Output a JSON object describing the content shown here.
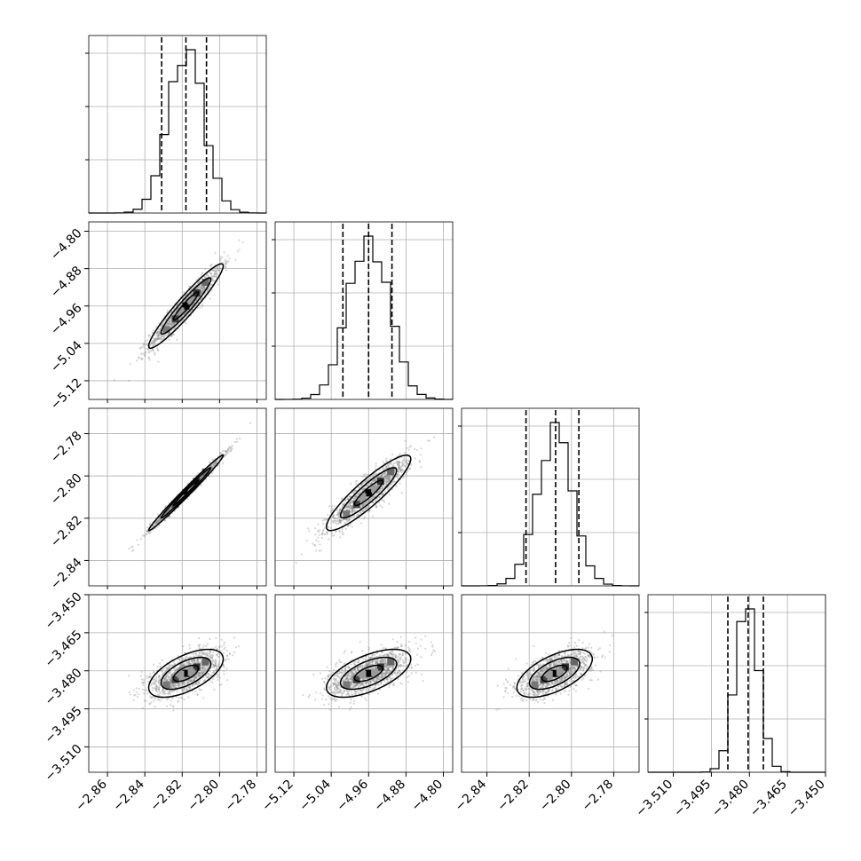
{
  "chart_data": {
    "type": "corner",
    "parameters": [
      {
        "range": [
          -2.87,
          -2.775
        ],
        "ticks": [
          -2.86,
          -2.84,
          -2.82,
          -2.8,
          -2.78
        ],
        "tick_labels": [
          "−2.86",
          "−2.84",
          "−2.82",
          "−2.80",
          "−2.78"
        ],
        "mean": -2.818,
        "sd": 0.0095,
        "quantiles": [
          -2.831,
          -2.818,
          -2.807
        ]
      },
      {
        "range": [
          -5.16,
          -4.78
        ],
        "ticks": [
          -5.12,
          -5.04,
          -4.96,
          -4.88,
          -4.8
        ],
        "tick_labels": [
          "−5.12",
          "−5.04",
          "−4.96",
          "−4.88",
          "−4.80"
        ],
        "mean": -4.96,
        "sd": 0.043,
        "quantiles": [
          -5.015,
          -4.96,
          -4.91
        ]
      },
      {
        "range": [
          -2.852,
          -2.768
        ],
        "ticks": [
          -2.84,
          -2.82,
          -2.8,
          -2.78
        ],
        "tick_labels": [
          "−2.84",
          "−2.82",
          "−2.80",
          "−2.78"
        ],
        "mean": -2.808,
        "sd": 0.0085,
        "quantiles": [
          -2.8215,
          -2.8075,
          -2.7965
        ]
      },
      {
        "range": [
          -3.52,
          -3.45
        ],
        "ticks": [
          -3.51,
          -3.495,
          -3.48,
          -3.465,
          -3.45
        ],
        "tick_labels": [
          "−3.510",
          "−3.495",
          "−3.480",
          "−3.465",
          "−3.450"
        ],
        "mean": -3.481,
        "sd": 0.0045,
        "quantiles": [
          -3.4885,
          -3.4805,
          -3.4745
        ]
      }
    ],
    "correlations": [
      [
        1.0,
        0.95,
        0.99,
        0.6
      ],
      [
        0.95,
        1.0,
        0.9,
        0.6
      ],
      [
        0.99,
        0.9,
        1.0,
        0.6
      ],
      [
        0.6,
        0.6,
        0.6,
        1.0
      ]
    ],
    "grid": true,
    "colors": {
      "points": "#8a8a8a",
      "lines": "#000000",
      "grid": "#b0b0b0"
    }
  }
}
